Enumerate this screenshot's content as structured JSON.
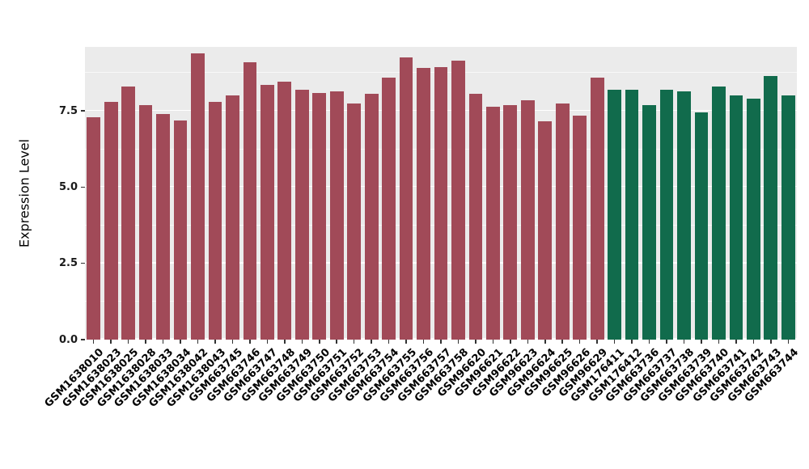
{
  "figure": {
    "background_color": "#FFFFFF",
    "panel_background_color": "#EBEBEB",
    "grid_major_color": "#FFFFFF",
    "grid_minor_color": "#F5F5F5"
  },
  "chart_data": {
    "type": "bar",
    "title": "",
    "xlabel": "",
    "ylabel": "Expression Level",
    "ylim": [
      0,
      9.6
    ],
    "yticks": [
      0.0,
      2.5,
      5.0,
      7.5
    ],
    "ytick_labels": [
      "0.0",
      "2.5",
      "5.0",
      "7.5"
    ],
    "yticks_minor": [
      1.25,
      3.75,
      6.25,
      8.75
    ],
    "grid": true,
    "legend_position": "none",
    "x_tick_rotation_deg": 45,
    "group_colors": {
      "group1": "#A14A58",
      "group2": "#116B4C"
    },
    "categories": [
      "GSM1638010",
      "GSM1638023",
      "GSM1638025",
      "GSM1638028",
      "GSM1638033",
      "GSM1638034",
      "GSM1638042",
      "GSM1638043",
      "GSM663745",
      "GSM663746",
      "GSM663747",
      "GSM663748",
      "GSM663749",
      "GSM663750",
      "GSM663751",
      "GSM663752",
      "GSM663753",
      "GSM663754",
      "GSM663755",
      "GSM663756",
      "GSM663757",
      "GSM663758",
      "GSM96620",
      "GSM96621",
      "GSM96622",
      "GSM96623",
      "GSM96624",
      "GSM96625",
      "GSM96626",
      "GSM96629",
      "GSM176411",
      "GSM176412",
      "GSM663736",
      "GSM663737",
      "GSM663738",
      "GSM663739",
      "GSM663740",
      "GSM663741",
      "GSM663742",
      "GSM663743",
      "GSM663744"
    ],
    "values": [
      7.3,
      7.8,
      8.3,
      7.7,
      7.4,
      7.2,
      9.4,
      7.8,
      8.0,
      9.1,
      8.35,
      8.45,
      8.2,
      8.1,
      8.15,
      7.75,
      8.05,
      8.6,
      9.25,
      8.9,
      8.95,
      9.15,
      8.05,
      7.65,
      7.7,
      7.85,
      7.15,
      7.75,
      7.35,
      8.6,
      8.2,
      8.2,
      7.7,
      8.2,
      8.15,
      7.45,
      8.3,
      8.0,
      7.9,
      8.65,
      8.0
    ],
    "colors": [
      "#A14A58",
      "#A14A58",
      "#A14A58",
      "#A14A58",
      "#A14A58",
      "#A14A58",
      "#A14A58",
      "#A14A58",
      "#A14A58",
      "#A14A58",
      "#A14A58",
      "#A14A58",
      "#A14A58",
      "#A14A58",
      "#A14A58",
      "#A14A58",
      "#A14A58",
      "#A14A58",
      "#A14A58",
      "#A14A58",
      "#A14A58",
      "#A14A58",
      "#A14A58",
      "#A14A58",
      "#A14A58",
      "#A14A58",
      "#A14A58",
      "#A14A58",
      "#A14A58",
      "#A14A58",
      "#116B4C",
      "#116B4C",
      "#116B4C",
      "#116B4C",
      "#116B4C",
      "#116B4C",
      "#116B4C",
      "#116B4C",
      "#116B4C",
      "#116B4C",
      "#116B4C"
    ]
  }
}
